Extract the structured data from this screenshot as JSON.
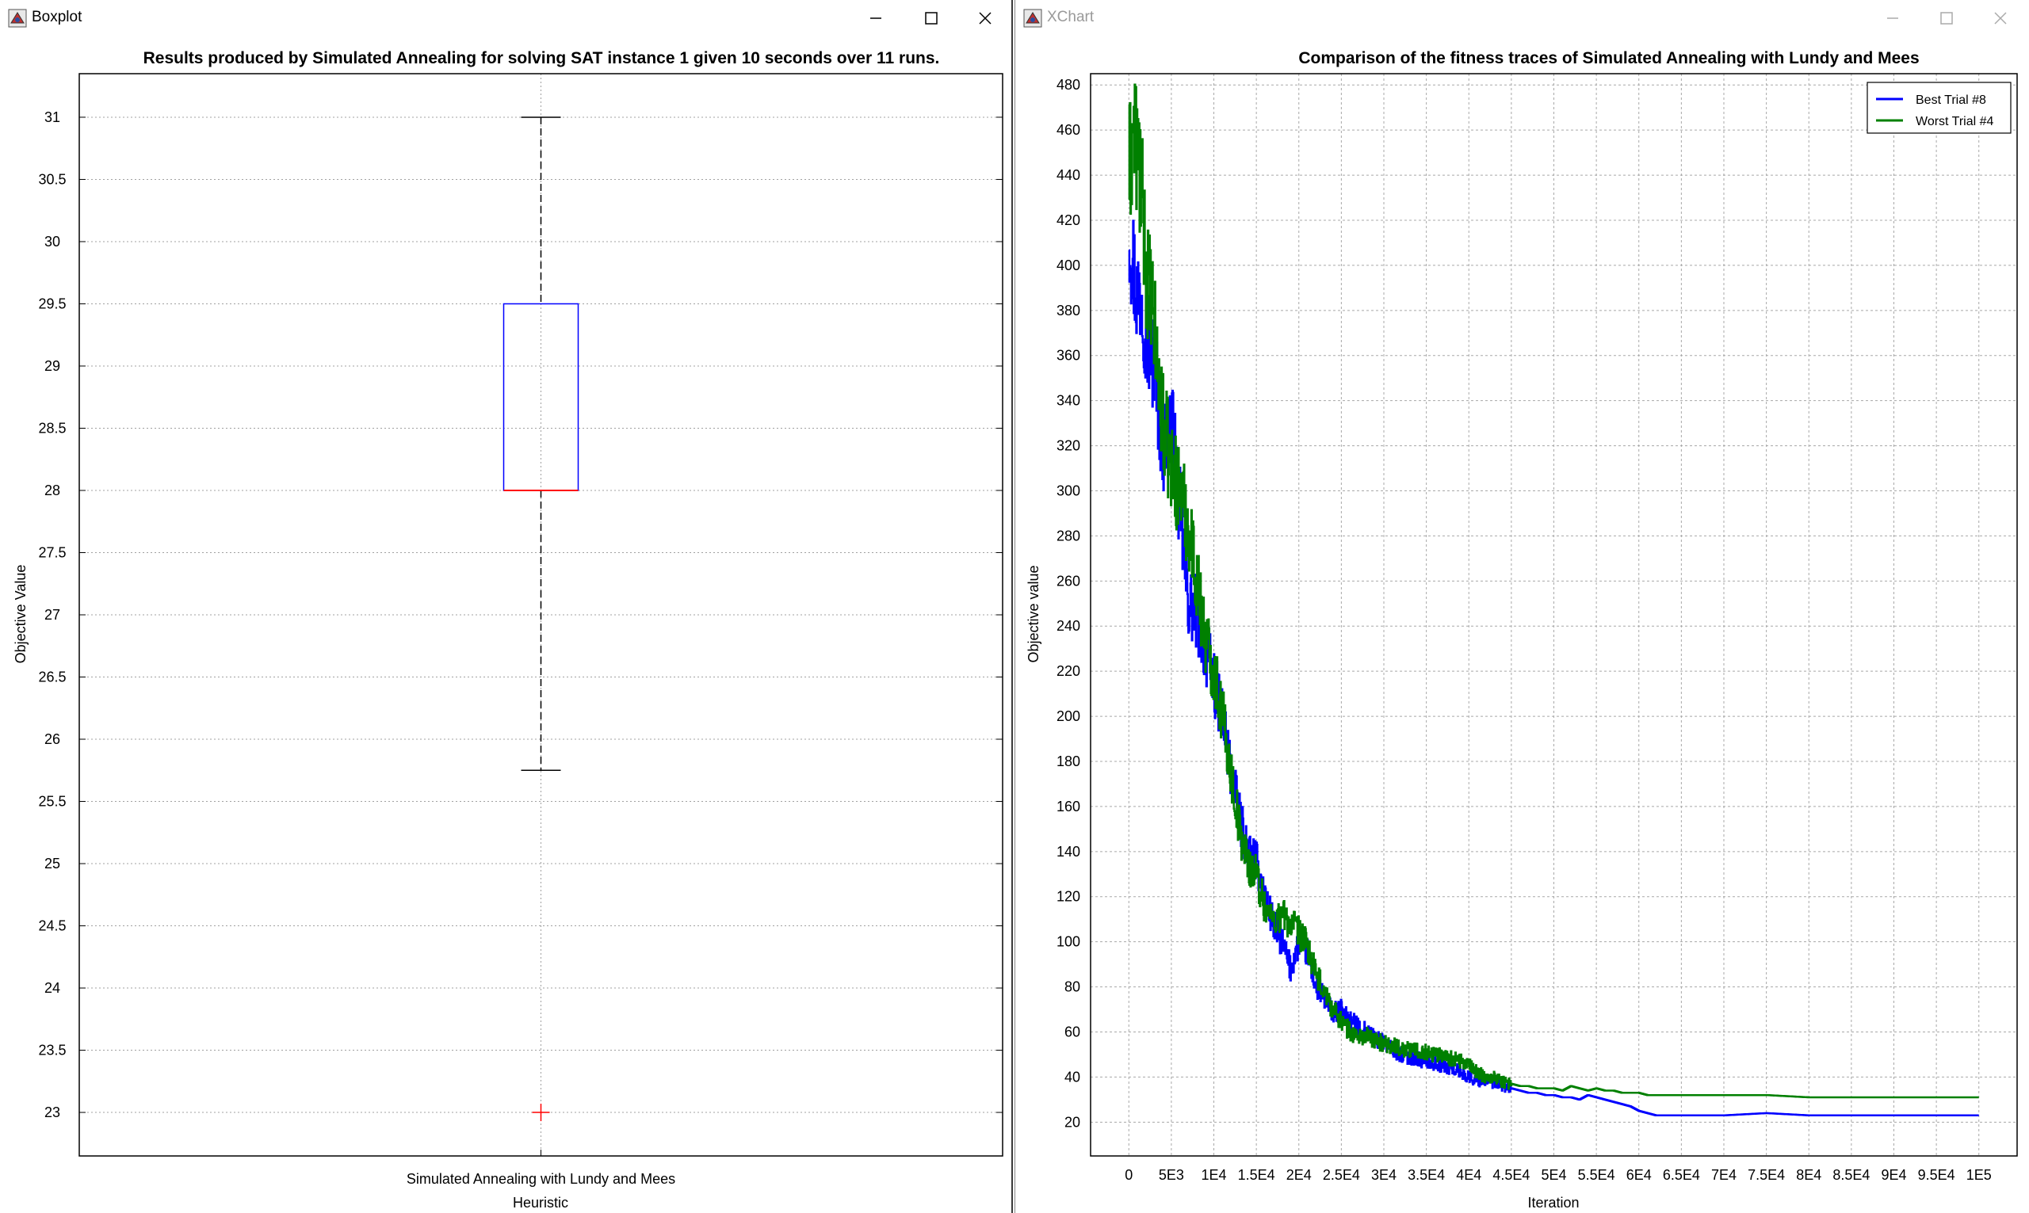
{
  "windows": {
    "left": {
      "title": "Boxplot"
    },
    "right": {
      "title": "XChart"
    }
  },
  "boxplot": {
    "chart_data": {
      "type": "boxplot",
      "title": "Results produced by Simulated Annealing for solving SAT instance 1 given 10 seconds over 11 runs.",
      "xlabel": "Heuristic",
      "ylabel": "Objective Value",
      "categories": [
        "Simulated Annealing with Lundy and Mees"
      ],
      "ylim": [
        22.65,
        31.35
      ],
      "yticks": [
        23,
        23.5,
        24,
        24.5,
        25,
        25.5,
        26,
        26.5,
        27,
        27.5,
        28,
        28.5,
        29,
        29.5,
        30,
        30.5,
        31
      ],
      "box": {
        "whisker_high": 31,
        "q3": 29.5,
        "median": 28,
        "q1": 28,
        "whisker_low": 25.75
      },
      "outliers": [
        23
      ],
      "grid": true,
      "colors": {
        "box": "#0000ff",
        "median": "#ff0000",
        "whisker": "#000000",
        "outlier": "#ff0000"
      }
    }
  },
  "xchart": {
    "chart_data": {
      "type": "line",
      "title": "Comparison of the fitness traces of Simulated Annealing with Lundy and Mees",
      "xlabel": "Iteration",
      "ylabel": "Objective value",
      "xlim": [
        -4500,
        104500
      ],
      "ylim": [
        5,
        485
      ],
      "xticks": [
        0,
        5000,
        10000,
        15000,
        20000,
        25000,
        30000,
        35000,
        40000,
        45000,
        50000,
        55000,
        60000,
        65000,
        70000,
        75000,
        80000,
        85000,
        90000,
        95000,
        100000
      ],
      "xtick_labels": [
        "0",
        "5E3",
        "1E4",
        "1.5E4",
        "2E4",
        "2.5E4",
        "3E4",
        "3.5E4",
        "4E4",
        "4.5E4",
        "5E4",
        "5.5E4",
        "6E4",
        "6.5E4",
        "7E4",
        "7.5E4",
        "8E4",
        "8.5E4",
        "9E4",
        "9.5E4",
        "1E5"
      ],
      "yticks": [
        20,
        40,
        60,
        80,
        100,
        120,
        140,
        160,
        180,
        200,
        220,
        240,
        260,
        280,
        300,
        320,
        340,
        360,
        380,
        400,
        420,
        440,
        460,
        480
      ],
      "grid": true,
      "legend_position": "top-right",
      "series": [
        {
          "name": "Best Trial #8",
          "color": "#0000ff",
          "points": [
            [
              0,
              420
            ],
            [
              500,
              400
            ],
            [
              1000,
              385
            ],
            [
              1500,
              392
            ],
            [
              2000,
              370
            ],
            [
              3000,
              355
            ],
            [
              4000,
              320
            ],
            [
              5000,
              330
            ],
            [
              6000,
              290
            ],
            [
              7000,
              250
            ],
            [
              8000,
              245
            ],
            [
              9000,
              230
            ],
            [
              10000,
              215
            ],
            [
              11000,
              200
            ],
            [
              12000,
              175
            ],
            [
              13000,
              155
            ],
            [
              14000,
              140
            ],
            [
              15000,
              135
            ],
            [
              16000,
              120
            ],
            [
              17000,
              108
            ],
            [
              18000,
              100
            ],
            [
              19000,
              88
            ],
            [
              20000,
              100
            ],
            [
              21000,
              95
            ],
            [
              22000,
              80
            ],
            [
              23000,
              75
            ],
            [
              24000,
              68
            ],
            [
              25000,
              70
            ],
            [
              26000,
              65
            ],
            [
              27000,
              62
            ],
            [
              28000,
              60
            ],
            [
              29000,
              57
            ],
            [
              30000,
              55
            ],
            [
              31000,
              52
            ],
            [
              32000,
              50
            ],
            [
              33000,
              49
            ],
            [
              34000,
              48
            ],
            [
              35000,
              47
            ],
            [
              36000,
              46
            ],
            [
              37000,
              45
            ],
            [
              38000,
              44
            ],
            [
              39000,
              42
            ],
            [
              40000,
              40
            ],
            [
              41000,
              38
            ],
            [
              42000,
              39
            ],
            [
              43000,
              37
            ],
            [
              44000,
              36
            ],
            [
              45000,
              35
            ],
            [
              46000,
              34
            ],
            [
              47000,
              33
            ],
            [
              48000,
              33
            ],
            [
              49000,
              32
            ],
            [
              50000,
              32
            ],
            [
              51000,
              31
            ],
            [
              52000,
              31
            ],
            [
              53000,
              30
            ],
            [
              54000,
              32
            ],
            [
              55000,
              31
            ],
            [
              56000,
              30
            ],
            [
              57000,
              29
            ],
            [
              58000,
              28
            ],
            [
              59000,
              27
            ],
            [
              60000,
              25
            ],
            [
              61000,
              24
            ],
            [
              62000,
              23
            ],
            [
              65000,
              23
            ],
            [
              70000,
              23
            ],
            [
              75000,
              24
            ],
            [
              80000,
              23
            ],
            [
              85000,
              23
            ],
            [
              90000,
              23
            ],
            [
              95000,
              23
            ],
            [
              100000,
              23
            ]
          ]
        },
        {
          "name": "Worst Trial #4",
          "color": "#008000",
          "points": [
            [
              0,
              440
            ],
            [
              500,
              460
            ],
            [
              1000,
              450
            ],
            [
              1500,
              430
            ],
            [
              2000,
              400
            ],
            [
              3000,
              370
            ],
            [
              4000,
              330
            ],
            [
              5000,
              310
            ],
            [
              6000,
              300
            ],
            [
              7000,
              285
            ],
            [
              8000,
              260
            ],
            [
              9000,
              235
            ],
            [
              10000,
              220
            ],
            [
              11000,
              200
            ],
            [
              12000,
              175
            ],
            [
              13000,
              150
            ],
            [
              14000,
              135
            ],
            [
              15000,
              130
            ],
            [
              16000,
              115
            ],
            [
              17000,
              110
            ],
            [
              18000,
              112
            ],
            [
              19000,
              108
            ],
            [
              20000,
              104
            ],
            [
              21000,
              98
            ],
            [
              22000,
              85
            ],
            [
              23000,
              78
            ],
            [
              24000,
              70
            ],
            [
              25000,
              65
            ],
            [
              26000,
              60
            ],
            [
              27000,
              58
            ],
            [
              28000,
              58
            ],
            [
              29000,
              56
            ],
            [
              30000,
              55
            ],
            [
              31000,
              54
            ],
            [
              32000,
              53
            ],
            [
              33000,
              52
            ],
            [
              34000,
              52
            ],
            [
              35000,
              51
            ],
            [
              36000,
              50
            ],
            [
              37000,
              50
            ],
            [
              38000,
              48
            ],
            [
              39000,
              47
            ],
            [
              40000,
              45
            ],
            [
              41000,
              42
            ],
            [
              42000,
              40
            ],
            [
              43000,
              40
            ],
            [
              44000,
              38
            ],
            [
              45000,
              37
            ],
            [
              46000,
              36
            ],
            [
              47000,
              36
            ],
            [
              48000,
              35
            ],
            [
              49000,
              35
            ],
            [
              50000,
              35
            ],
            [
              51000,
              34
            ],
            [
              52000,
              36
            ],
            [
              53000,
              35
            ],
            [
              54000,
              34
            ],
            [
              55000,
              35
            ],
            [
              56000,
              34
            ],
            [
              57000,
              34
            ],
            [
              58000,
              33
            ],
            [
              59000,
              33
            ],
            [
              60000,
              33
            ],
            [
              61000,
              32
            ],
            [
              62000,
              32
            ],
            [
              65000,
              32
            ],
            [
              70000,
              32
            ],
            [
              75000,
              32
            ],
            [
              80000,
              31
            ],
            [
              85000,
              31
            ],
            [
              90000,
              31
            ],
            [
              95000,
              31
            ],
            [
              100000,
              31
            ]
          ]
        }
      ]
    }
  }
}
